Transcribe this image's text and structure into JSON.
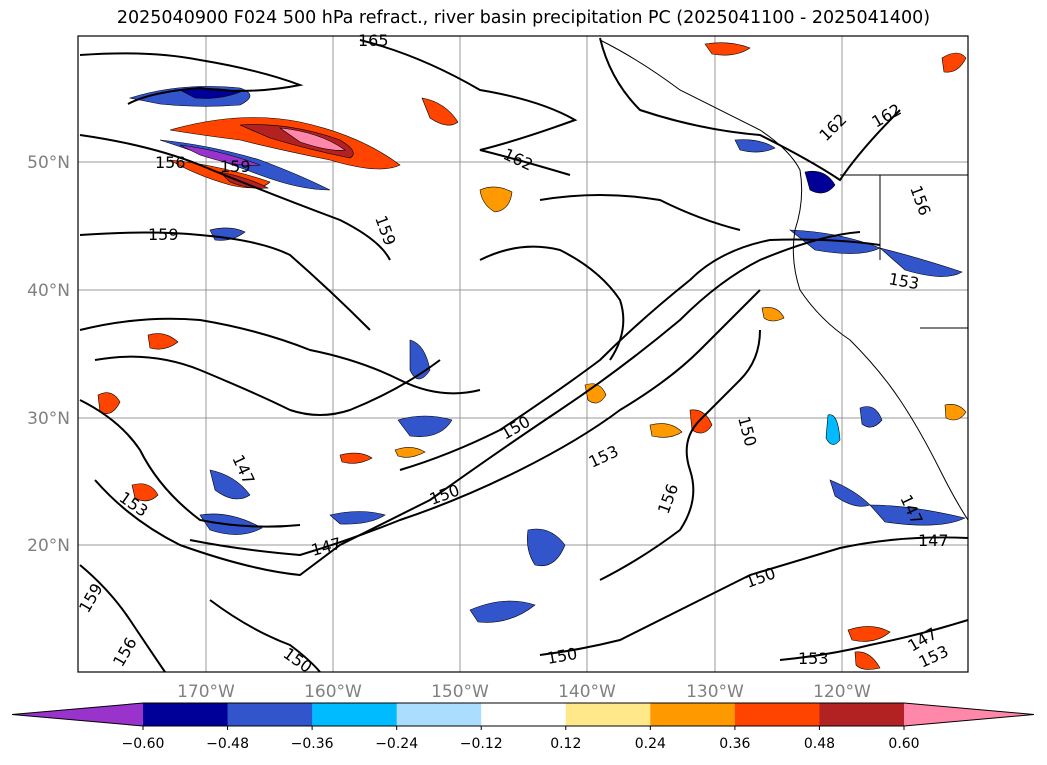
{
  "title": "2025040900 F024 500 hPa refract., river basin precipitation PC (2025041100 - 2025041400)",
  "lat_labels": [
    {
      "text": "50°N",
      "lat": 50
    },
    {
      "text": "40°N",
      "lat": 40
    },
    {
      "text": "30°N",
      "lat": 30
    },
    {
      "text": "20°N",
      "lat": 20
    }
  ],
  "lon_labels": [
    {
      "text": "170°W",
      "lon": -170
    },
    {
      "text": "160°W",
      "lon": -160
    },
    {
      "text": "150°W",
      "lon": -150
    },
    {
      "text": "140°W",
      "lon": -140
    },
    {
      "text": "130°W",
      "lon": -130
    },
    {
      "text": "120°W",
      "lon": -120
    }
  ],
  "contour_labels": [
    "165",
    "162",
    "162",
    "162",
    "156",
    "159",
    "159",
    "159",
    "156",
    "153",
    "150",
    "147",
    "153",
    "150",
    "147",
    "153",
    "150",
    "156",
    "150",
    "147",
    "147",
    "150",
    "153",
    "153",
    "147",
    "159",
    "156",
    "150"
  ],
  "colorbar": {
    "ticks": [
      "−0.60",
      "−0.48",
      "−0.36",
      "−0.24",
      "−0.12",
      "0.12",
      "0.24",
      "0.36",
      "0.48",
      "0.60"
    ],
    "colors": [
      "#9933cc",
      "#000099",
      "#3355cc",
      "#00bbff",
      "#aaddff",
      "#ffffff",
      "#ffe88a",
      "#ff9900",
      "#ff4400",
      "#b22222",
      "#ff88aa"
    ]
  }
}
